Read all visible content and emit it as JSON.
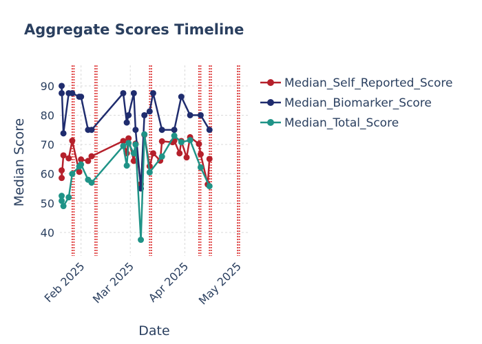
{
  "chart_data": {
    "type": "line",
    "title": "Aggregate Scores Timeline",
    "xlabel": "Date",
    "ylabel": "Median Score",
    "ylim": [
      32,
      97
    ],
    "xlim": [
      "2025-01-20",
      "2025-05-08"
    ],
    "yticks": [
      "40",
      "50",
      "60",
      "70",
      "80",
      "90"
    ],
    "xticks": [
      {
        "date": "2025-02-01",
        "label": "Feb 2025"
      },
      {
        "date": "2025-03-01",
        "label": "Mar 2025"
      },
      {
        "date": "2025-04-01",
        "label": "Apr 2025"
      },
      {
        "date": "2025-05-01",
        "label": "May 2025"
      }
    ],
    "grid": true,
    "legend_position": "right",
    "vlines": [
      "2025-01-27",
      "2025-01-28",
      "2025-02-09",
      "2025-02-10",
      "2025-03-12",
      "2025-03-13",
      "2025-04-09",
      "2025-04-10",
      "2025-04-15",
      "2025-04-16",
      "2025-05-01",
      "2025-05-02"
    ],
    "vline_color": "#e04545",
    "series": [
      {
        "name": "Median_Self_Reported_Score",
        "color": "#b5202b",
        "points": [
          {
            "x": "2025-01-21",
            "y": 61.2
          },
          {
            "x": "2025-01-21",
            "y": 58.6
          },
          {
            "x": "2025-01-22",
            "y": 66.3
          },
          {
            "x": "2025-01-25",
            "y": 65.3
          },
          {
            "x": "2025-01-27",
            "y": 71.3
          },
          {
            "x": "2025-01-31",
            "y": 60.7
          },
          {
            "x": "2025-02-01",
            "y": 64.9
          },
          {
            "x": "2025-02-05",
            "y": 64.4
          },
          {
            "x": "2025-02-07",
            "y": 66.0
          },
          {
            "x": "2025-02-25",
            "y": 71.2
          },
          {
            "x": "2025-02-27",
            "y": 67.0
          },
          {
            "x": "2025-02-28",
            "y": 72.1
          },
          {
            "x": "2025-03-03",
            "y": 64.4
          },
          {
            "x": "2025-03-04",
            "y": 70.3
          },
          {
            "x": "2025-03-07",
            "y": 56.5
          },
          {
            "x": "2025-03-09",
            "y": 73.3
          },
          {
            "x": "2025-03-12",
            "y": 62.6
          },
          {
            "x": "2025-03-14",
            "y": 67.0
          },
          {
            "x": "2025-03-18",
            "y": 64.5
          },
          {
            "x": "2025-03-19",
            "y": 71.1
          },
          {
            "x": "2025-03-25",
            "y": 70.8
          },
          {
            "x": "2025-03-26",
            "y": 71.3
          },
          {
            "x": "2025-03-29",
            "y": 67.0
          },
          {
            "x": "2025-03-30",
            "y": 71.2
          },
          {
            "x": "2025-04-02",
            "y": 65.6
          },
          {
            "x": "2025-04-04",
            "y": 72.5
          },
          {
            "x": "2025-04-09",
            "y": 70.2
          },
          {
            "x": "2025-04-10",
            "y": 66.7
          },
          {
            "x": "2025-04-14",
            "y": 56.4
          },
          {
            "x": "2025-04-15",
            "y": 65.1
          }
        ]
      },
      {
        "name": "Median_Biomarker_Score",
        "color": "#1f2c6e",
        "points": [
          {
            "x": "2025-01-21",
            "y": 87.5
          },
          {
            "x": "2025-01-21",
            "y": 90.0
          },
          {
            "x": "2025-01-22",
            "y": 73.8
          },
          {
            "x": "2025-01-25",
            "y": 87.5
          },
          {
            "x": "2025-01-27",
            "y": 87.5
          },
          {
            "x": "2025-01-31",
            "y": 86.3
          },
          {
            "x": "2025-02-01",
            "y": 86.3
          },
          {
            "x": "2025-02-05",
            "y": 75.0
          },
          {
            "x": "2025-02-07",
            "y": 75.0
          },
          {
            "x": "2025-02-25",
            "y": 87.5
          },
          {
            "x": "2025-02-27",
            "y": 77.5
          },
          {
            "x": "2025-02-28",
            "y": 80.0
          },
          {
            "x": "2025-03-03",
            "y": 87.5
          },
          {
            "x": "2025-03-04",
            "y": 75.0
          },
          {
            "x": "2025-03-07",
            "y": 55.0
          },
          {
            "x": "2025-03-09",
            "y": 80.0
          },
          {
            "x": "2025-03-12",
            "y": 81.3
          },
          {
            "x": "2025-03-14",
            "y": 87.5
          },
          {
            "x": "2025-03-19",
            "y": 75.0
          },
          {
            "x": "2025-03-26",
            "y": 75.0
          },
          {
            "x": "2025-03-30",
            "y": 86.3
          },
          {
            "x": "2025-04-04",
            "y": 80.0
          },
          {
            "x": "2025-04-10",
            "y": 80.0
          },
          {
            "x": "2025-04-15",
            "y": 75.0
          }
        ]
      },
      {
        "name": "Median_Total_Score",
        "color": "#1f9387",
        "points": [
          {
            "x": "2025-01-21",
            "y": 50.8
          },
          {
            "x": "2025-01-21",
            "y": 52.5
          },
          {
            "x": "2025-01-22",
            "y": 49.0
          },
          {
            "x": "2025-01-25",
            "y": 52.0
          },
          {
            "x": "2025-01-27",
            "y": 60.0
          },
          {
            "x": "2025-01-31",
            "y": 62.5
          },
          {
            "x": "2025-02-01",
            "y": 63.2
          },
          {
            "x": "2025-02-05",
            "y": 58.0
          },
          {
            "x": "2025-02-07",
            "y": 57.0
          },
          {
            "x": "2025-02-25",
            "y": 69.5
          },
          {
            "x": "2025-02-27",
            "y": 62.8
          },
          {
            "x": "2025-02-28",
            "y": 70.5
          },
          {
            "x": "2025-03-03",
            "y": 67.0
          },
          {
            "x": "2025-03-04",
            "y": 70.0
          },
          {
            "x": "2025-03-07",
            "y": 37.5
          },
          {
            "x": "2025-03-09",
            "y": 73.5
          },
          {
            "x": "2025-03-12",
            "y": 60.5
          },
          {
            "x": "2025-03-19",
            "y": 65.9
          },
          {
            "x": "2025-03-26",
            "y": 73.0
          },
          {
            "x": "2025-03-30",
            "y": 70.8
          },
          {
            "x": "2025-04-04",
            "y": 71.5
          },
          {
            "x": "2025-04-10",
            "y": 62.2
          },
          {
            "x": "2025-04-15",
            "y": 55.8
          }
        ]
      }
    ]
  }
}
